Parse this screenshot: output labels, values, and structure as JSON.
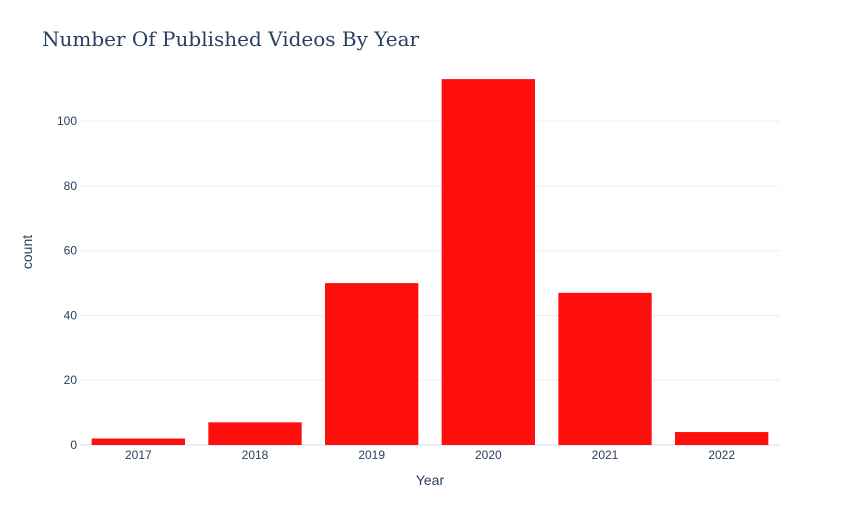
{
  "chart_data": {
    "type": "bar",
    "title": "Number Of Published Videos By Year",
    "xlabel": "Year",
    "ylabel": "count",
    "categories": [
      "2017",
      "2018",
      "2019",
      "2020",
      "2021",
      "2022"
    ],
    "values": [
      2,
      7,
      50,
      113,
      47,
      4
    ],
    "ylim": [
      0,
      118.9
    ],
    "yticks": [
      0,
      20,
      40,
      60,
      80,
      100
    ],
    "grid": true,
    "bar_color": "#ff0e0e",
    "background": "#ffffff"
  }
}
